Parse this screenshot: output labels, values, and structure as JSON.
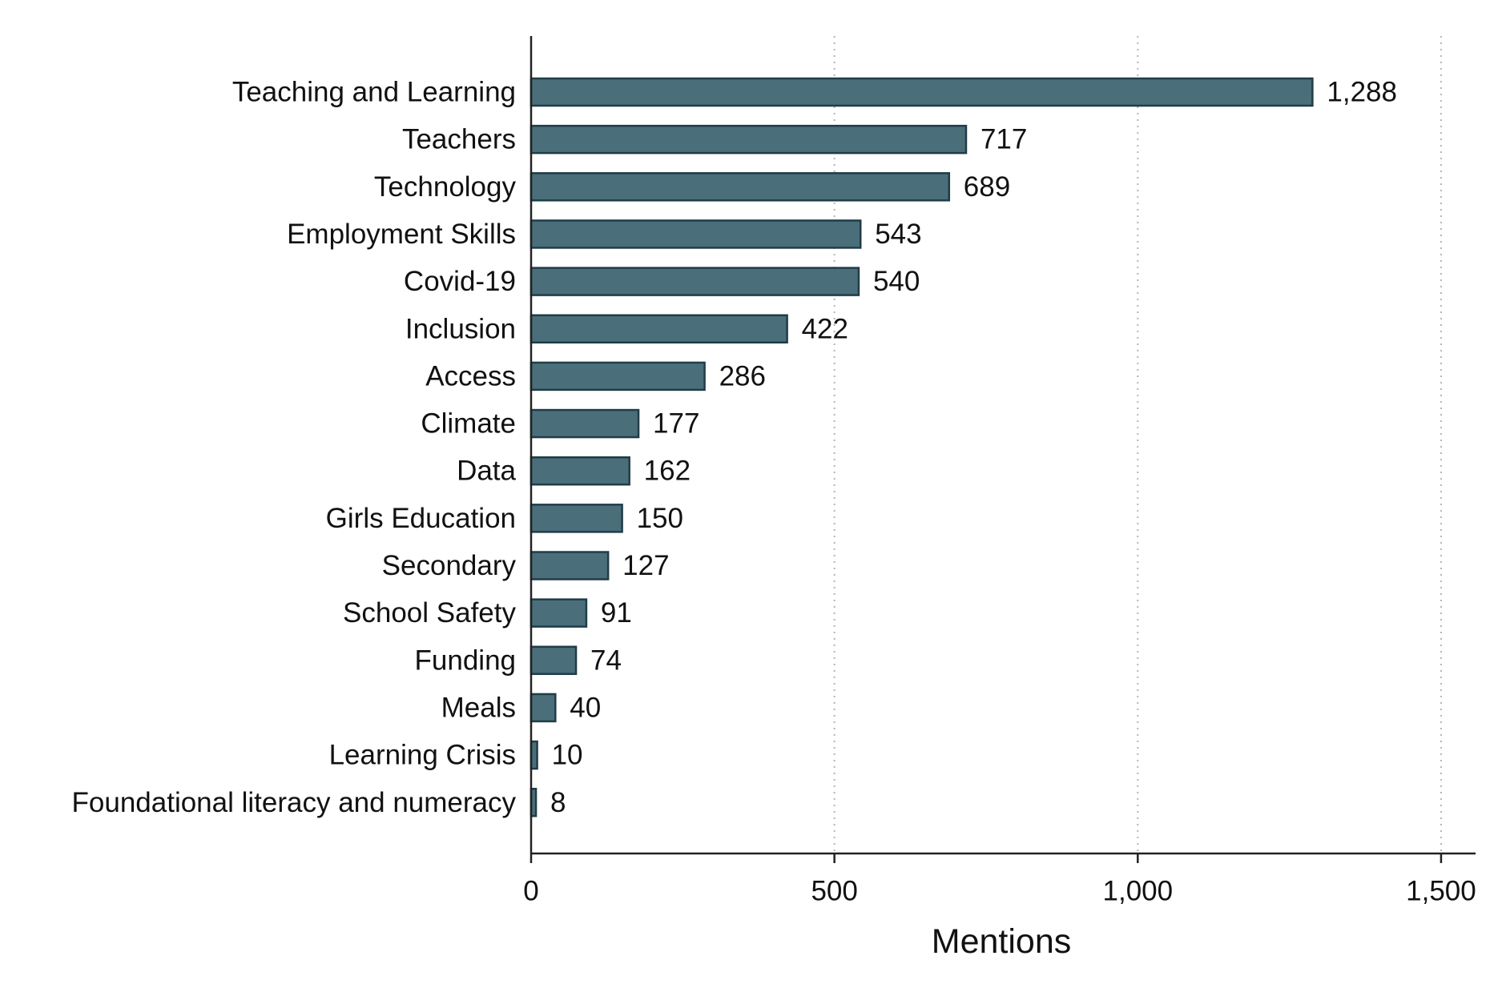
{
  "chart_data": {
    "type": "bar",
    "orientation": "horizontal",
    "categories": [
      "Teaching and Learning",
      "Teachers",
      "Technology",
      "Employment Skills",
      "Covid-19",
      "Inclusion",
      "Access",
      "Climate",
      "Data",
      "Girls Education",
      "Secondary",
      "School Safety",
      "Funding",
      "Meals",
      "Learning Crisis",
      "Foundational literacy and numeracy"
    ],
    "values": [
      1288,
      717,
      689,
      543,
      540,
      422,
      286,
      177,
      162,
      150,
      127,
      91,
      74,
      40,
      10,
      8
    ],
    "value_labels": [
      "1,288",
      "717",
      "689",
      "543",
      "540",
      "422",
      "286",
      "177",
      "162",
      "150",
      "127",
      "91",
      "74",
      "40",
      "10",
      "8"
    ],
    "title": "",
    "xlabel": "Mentions",
    "ylabel": "",
    "xlim": [
      0,
      1550
    ],
    "xticks": [
      0,
      500,
      1000,
      1500
    ],
    "xtick_labels": [
      "0",
      "500",
      "1,000",
      "1,500"
    ],
    "grid": "vertical dotted",
    "bar_color": "#4a6f7a",
    "bar_edge_color": "#203c47"
  }
}
